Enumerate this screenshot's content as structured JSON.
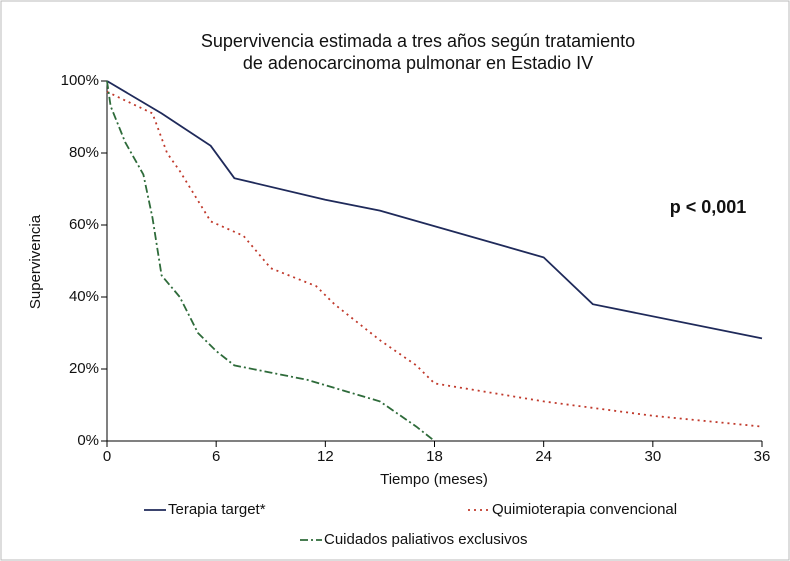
{
  "chart_data": {
    "type": "line",
    "title": [
      "Supervivencia estimada a tres años según tratamiento",
      "de adenocarcinoma pulmonar en Estadio IV"
    ],
    "xlabel": "Tiempo (meses)",
    "ylabel": "Supervivencia",
    "annotation": "p < 0,001",
    "xlim": [
      0,
      36
    ],
    "xticks": [
      0,
      6,
      12,
      18,
      24,
      30,
      36
    ],
    "ylim": [
      0,
      100
    ],
    "yticks": [
      {
        "value": 0,
        "label": "0%"
      },
      {
        "value": 20,
        "label": "20%"
      },
      {
        "value": 40,
        "label": "40%"
      },
      {
        "value": 60,
        "label": "60%"
      },
      {
        "value": 80,
        "label": "80%"
      },
      {
        "value": 100,
        "label": "100%"
      }
    ],
    "grid": false,
    "series": [
      {
        "name": "Terapia target*",
        "color": "#1f2a5a",
        "linestyle": "solid",
        "x": [
          0,
          3,
          5.7,
          7,
          12,
          15,
          24,
          26.7,
          36
        ],
        "values": [
          100,
          91,
          82,
          73,
          67,
          64,
          51,
          38,
          28.5
        ]
      },
      {
        "name": "Quimioterapia convencional",
        "color": "#c0392b",
        "linestyle": "dotted",
        "x": [
          0,
          2.5,
          3.3,
          4,
          5.7,
          7.5,
          9,
          11.5,
          12.5,
          15,
          17,
          18,
          24,
          27,
          30,
          36
        ],
        "values": [
          97,
          91,
          80,
          75,
          61,
          57,
          48,
          43,
          38,
          28,
          21,
          16,
          11,
          9,
          7,
          4
        ]
      },
      {
        "name": "Cuidados paliativos exclusivos",
        "color": "#2e6b3a",
        "linestyle": "dashdot",
        "x": [
          0,
          0.2,
          1,
          2,
          2.5,
          3,
          4,
          5,
          6,
          7,
          9,
          11,
          13,
          15,
          17,
          18
        ],
        "values": [
          100,
          93,
          83,
          74,
          62,
          46,
          40,
          30,
          25,
          21,
          19,
          17,
          14,
          11,
          4,
          0
        ]
      }
    ]
  }
}
